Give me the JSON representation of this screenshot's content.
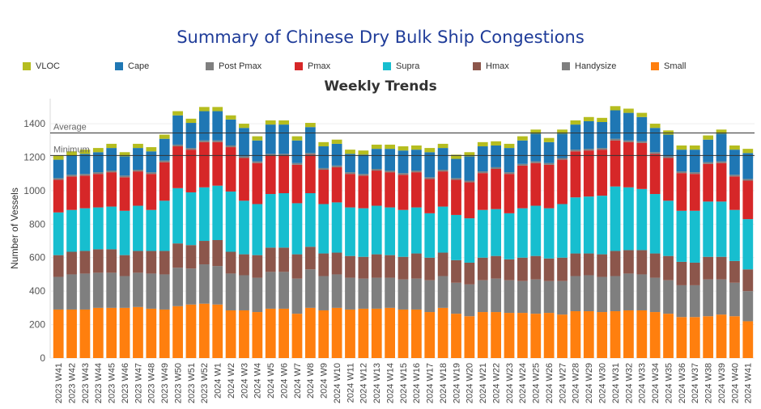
{
  "header": {
    "title": "Summary of Chinese Dry Bulk Ship Congestions"
  },
  "legend": [
    {
      "label": "VLOC",
      "color": "#b5bd1f"
    },
    {
      "label": "Cape",
      "color": "#1f77b4"
    },
    {
      "label": "Post Pmax",
      "color": "#7f7f7f"
    },
    {
      "label": "Pmax",
      "color": "#d62728"
    },
    {
      "label": "Supra",
      "color": "#17becf"
    },
    {
      "label": "Hmax",
      "color": "#8c564b"
    },
    {
      "label": "Handysize",
      "color": "#7f7f7f"
    },
    {
      "label": "Small",
      "color": "#ff7f0e"
    }
  ],
  "chart_data": {
    "type": "bar",
    "stacked": true,
    "title": "Weekly Trends",
    "xlabel": "",
    "ylabel": "Number of Vessels",
    "ylim": [
      0,
      1550
    ],
    "yticks": [
      0,
      200,
      400,
      600,
      800,
      1000,
      1200,
      1400
    ],
    "grid": true,
    "reference_lines": [
      {
        "label": "Average",
        "value": 1345
      },
      {
        "label": "Minimum",
        "value": 1210
      }
    ],
    "categories": [
      "2023 W41",
      "2023 W42",
      "2023 W43",
      "2023 W44",
      "2023 W45",
      "2023 W46",
      "2023 W47",
      "2023 W48",
      "2023 W49",
      "2023 W50",
      "2023 W51",
      "2023 W52",
      "2024 W1",
      "2024 W2",
      "2024 W3",
      "2024 W4",
      "2024 W5",
      "2024 W6",
      "2024 W7",
      "2024 W8",
      "2024 W9",
      "2024 W10",
      "2024 W11",
      "2024 W12",
      "2024 W13",
      "2024 W14",
      "2024 W15",
      "2024 W16",
      "2024 W17",
      "2024 W18",
      "2024 W19",
      "2024 W20",
      "2024 W21",
      "2024 W22",
      "2024 W23",
      "2024 W24",
      "2024 W25",
      "2024 W26",
      "2024 W27",
      "2024 W28",
      "2024 W29",
      "2024 W30",
      "2024 W31",
      "2024 W32",
      "2024 W33",
      "2024 W34",
      "2024 W35",
      "2024 W36",
      "2024 W37",
      "2024 W38",
      "2024 W39",
      "2024 W40",
      "2024 W41"
    ],
    "series": [
      {
        "name": "Small",
        "color": "#ff7f0e",
        "values": [
          290,
          290,
          290,
          300,
          300,
          300,
          305,
          295,
          290,
          310,
          320,
          325,
          320,
          285,
          285,
          275,
          295,
          295,
          265,
          300,
          285,
          300,
          290,
          295,
          295,
          300,
          290,
          290,
          275,
          300,
          265,
          250,
          275,
          275,
          270,
          270,
          265,
          270,
          260,
          280,
          280,
          275,
          280,
          285,
          285,
          275,
          265,
          245,
          245,
          250,
          260,
          250,
          220
        ]
      },
      {
        "name": "Handysize",
        "color": "#7f7f7f",
        "values": [
          195,
          210,
          215,
          210,
          210,
          190,
          205,
          210,
          210,
          230,
          215,
          235,
          230,
          220,
          210,
          205,
          220,
          220,
          210,
          230,
          205,
          200,
          190,
          180,
          185,
          180,
          180,
          185,
          190,
          190,
          185,
          190,
          190,
          200,
          195,
          190,
          205,
          190,
          200,
          210,
          215,
          210,
          210,
          220,
          215,
          205,
          200,
          190,
          190,
          220,
          210,
          200,
          180
        ]
      },
      {
        "name": "Hmax",
        "color": "#8c564b",
        "values": [
          130,
          135,
          135,
          140,
          140,
          125,
          130,
          135,
          140,
          145,
          140,
          140,
          155,
          130,
          125,
          135,
          145,
          145,
          145,
          135,
          135,
          130,
          130,
          130,
          140,
          135,
          135,
          150,
          135,
          140,
          135,
          130,
          135,
          135,
          125,
          140,
          140,
          135,
          140,
          135,
          130,
          135,
          150,
          140,
          145,
          145,
          145,
          140,
          135,
          135,
          135,
          130,
          130
        ]
      },
      {
        "name": "Supra",
        "color": "#17becf",
        "values": [
          255,
          250,
          255,
          250,
          255,
          265,
          270,
          245,
          300,
          330,
          315,
          320,
          325,
          360,
          320,
          305,
          320,
          325,
          305,
          320,
          295,
          300,
          290,
          290,
          290,
          285,
          280,
          275,
          265,
          275,
          270,
          265,
          285,
          280,
          275,
          295,
          300,
          300,
          320,
          335,
          340,
          350,
          385,
          375,
          365,
          355,
          330,
          305,
          310,
          330,
          330,
          305,
          300
        ]
      },
      {
        "name": "Pmax",
        "color": "#d62728",
        "values": [
          195,
          200,
          195,
          200,
          205,
          200,
          205,
          215,
          230,
          250,
          255,
          270,
          260,
          265,
          255,
          245,
          230,
          225,
          230,
          230,
          205,
          210,
          200,
          195,
          210,
          210,
          210,
          210,
          205,
          210,
          210,
          215,
          220,
          240,
          235,
          255,
          255,
          260,
          265,
          275,
          275,
          275,
          275,
          270,
          275,
          240,
          255,
          225,
          220,
          225,
          230,
          200,
          230
        ]
      },
      {
        "name": "Post Pmax",
        "color": "#7f7f7f",
        "values": [
          10,
          10,
          10,
          10,
          10,
          10,
          10,
          10,
          10,
          10,
          10,
          10,
          10,
          10,
          10,
          10,
          10,
          10,
          10,
          10,
          10,
          10,
          10,
          10,
          10,
          10,
          10,
          10,
          10,
          10,
          10,
          10,
          10,
          10,
          10,
          10,
          10,
          10,
          10,
          10,
          10,
          10,
          10,
          10,
          10,
          10,
          10,
          10,
          10,
          10,
          10,
          10,
          10
        ]
      },
      {
        "name": "Cape",
        "color": "#1f77b4",
        "values": [
          110,
          115,
          120,
          120,
          135,
          115,
          130,
          125,
          130,
          175,
          150,
          175,
          175,
          155,
          170,
          125,
          175,
          175,
          135,
          155,
          130,
          130,
          110,
          115,
          120,
          130,
          135,
          125,
          150,
          130,
          115,
          145,
          150,
          130,
          145,
          140,
          165,
          125,
          145,
          150,
          165,
          155,
          170,
          165,
          145,
          145,
          130,
          130,
          135,
          135,
          165,
          150,
          155
        ]
      },
      {
        "name": "VLOC",
        "color": "#b5bd1f",
        "values": [
          25,
          25,
          25,
          25,
          25,
          25,
          25,
          25,
          25,
          25,
          25,
          25,
          25,
          25,
          25,
          25,
          25,
          25,
          25,
          25,
          25,
          25,
          25,
          25,
          25,
          25,
          25,
          25,
          25,
          25,
          25,
          25,
          25,
          25,
          25,
          25,
          25,
          25,
          25,
          25,
          25,
          25,
          25,
          25,
          25,
          25,
          25,
          25,
          25,
          25,
          25,
          25,
          25
        ]
      }
    ]
  }
}
